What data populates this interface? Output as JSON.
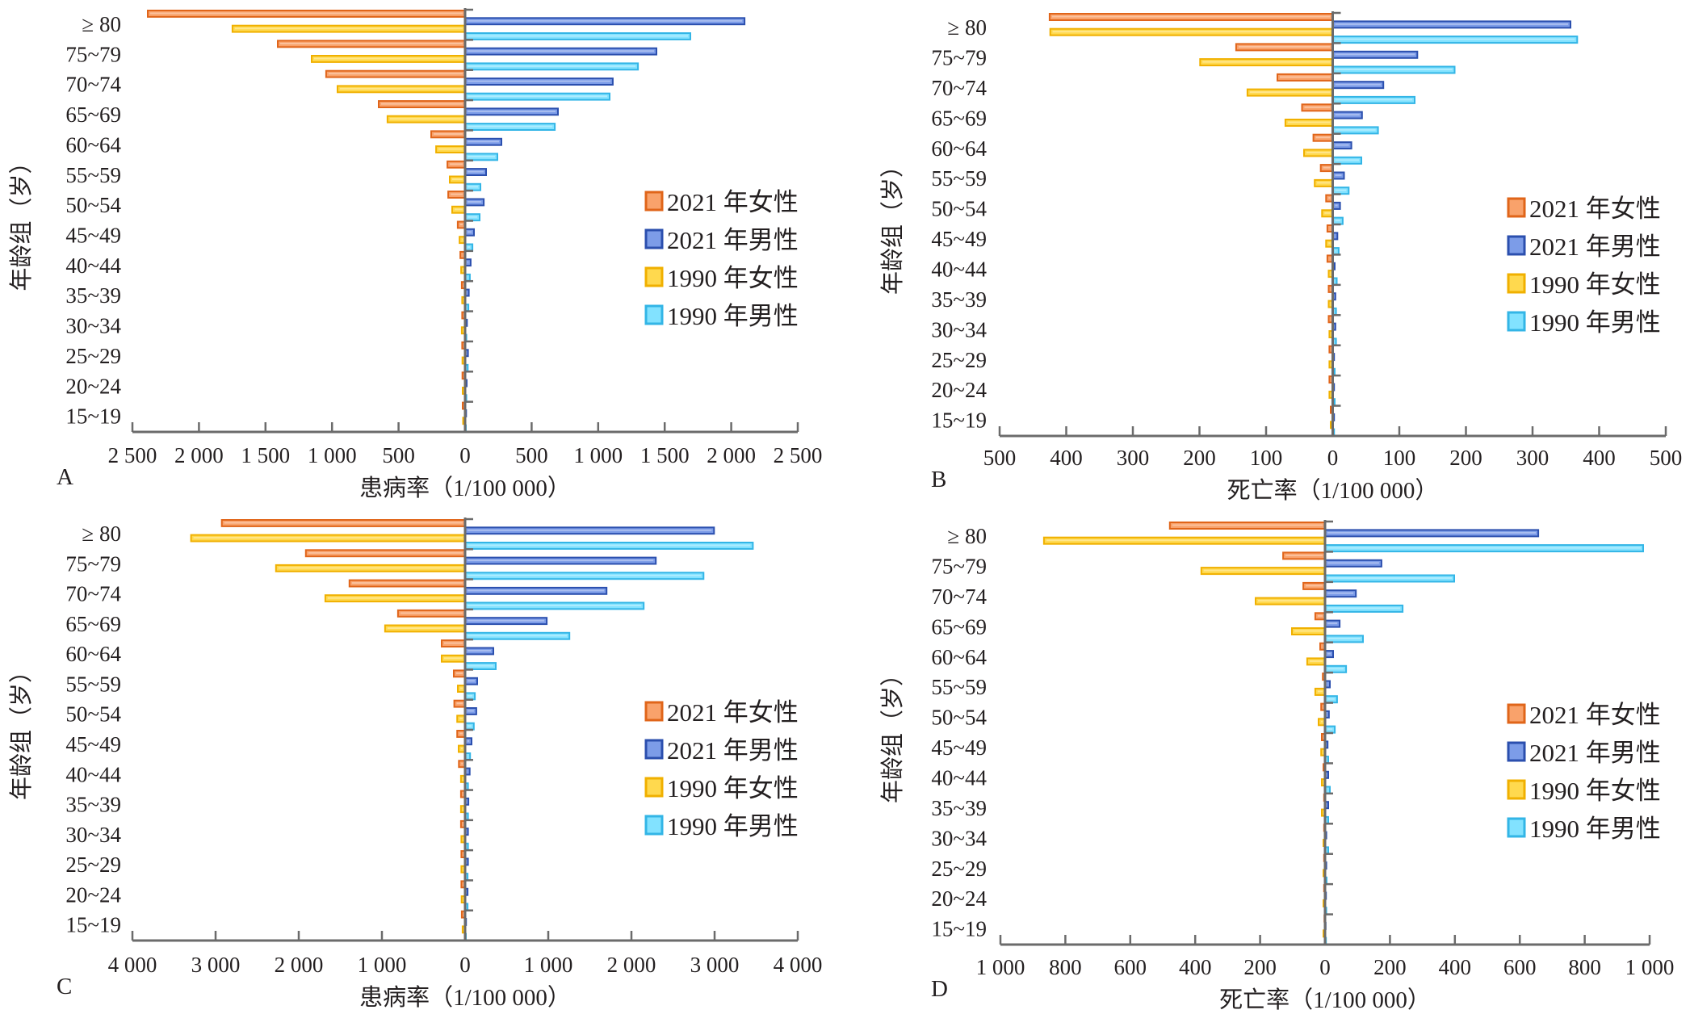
{
  "figure": {
    "y_axis_label": "年龄组（岁）",
    "legend": [
      {
        "key": "f2021",
        "label": "2021 年女性",
        "fill": "#F9A26B",
        "stroke": "#E0651A"
      },
      {
        "key": "m2021",
        "label": "2021 年男性",
        "fill": "#7C9CE8",
        "stroke": "#2B4FAE"
      },
      {
        "key": "f1990",
        "label": "1990 年女性",
        "fill": "#FFD94E",
        "stroke": "#F0B000"
      },
      {
        "key": "m1990",
        "label": "1990 年男性",
        "fill": "#82E2FF",
        "stroke": "#33B5E6"
      }
    ]
  },
  "chart_data": [
    {
      "panel": "A",
      "type": "bar",
      "orientation": "horizontal-butterfly",
      "xlabel": "患病率（1/100 000）",
      "ylabel": "年龄组（岁）",
      "xlim": [
        -2500,
        2500
      ],
      "xticks": [
        -2500,
        -2000,
        -1500,
        -1000,
        -500,
        0,
        500,
        1000,
        1500,
        2000,
        2500
      ],
      "xtick_labels": [
        "2 500",
        "2 000",
        "1 500",
        "1 000",
        "500",
        "0",
        "500",
        "1 000",
        "1 500",
        "2 000",
        "2 500"
      ],
      "legend_position": "right-middle",
      "categories": [
        "≥ 80",
        "75~79",
        "70~74",
        "65~69",
        "60~64",
        "55~59",
        "50~54",
        "45~49",
        "40~44",
        "35~39",
        "30~34",
        "25~29",
        "20~24",
        "15~19"
      ],
      "series": [
        {
          "name": "2021 年女性",
          "key": "f2021",
          "side": "left",
          "values": [
            2385,
            1408,
            1044,
            649,
            255,
            133,
            127,
            55,
            36,
            25,
            22,
            22,
            20,
            18
          ]
        },
        {
          "name": "2021 年男性",
          "key": "m2021",
          "side": "right",
          "values": [
            2100,
            1438,
            1110,
            698,
            273,
            158,
            140,
            67,
            42,
            28,
            14,
            22,
            12,
            8
          ]
        },
        {
          "name": "1990 年女性",
          "key": "f1990",
          "side": "left",
          "values": [
            1748,
            1153,
            959,
            583,
            218,
            115,
            97,
            42,
            30,
            22,
            25,
            20,
            18,
            15
          ]
        },
        {
          "name": "1990 年男性",
          "key": "m1990",
          "side": "right",
          "values": [
            1693,
            1299,
            1086,
            674,
            243,
            115,
            109,
            55,
            36,
            25,
            10,
            20,
            10,
            6
          ]
        }
      ]
    },
    {
      "panel": "B",
      "type": "bar",
      "orientation": "horizontal-butterfly",
      "xlabel": "死亡率（1/100 000）",
      "ylabel": "年龄组（岁）",
      "xlim": [
        -500,
        500
      ],
      "xticks": [
        -500,
        -400,
        -300,
        -200,
        -100,
        0,
        100,
        200,
        300,
        400,
        500
      ],
      "xtick_labels": [
        "500",
        "400",
        "300",
        "200",
        "100",
        "0",
        "100",
        "200",
        "300",
        "400",
        "500"
      ],
      "legend_position": "right-middle",
      "categories": [
        "≥ 80",
        "75~79",
        "70~74",
        "65~69",
        "60~64",
        "55~59",
        "50~54",
        "45~49",
        "40~44",
        "35~39",
        "30~34",
        "25~29",
        "20~24",
        "15~19"
      ],
      "series": [
        {
          "name": "2021 年女性",
          "key": "f2021",
          "side": "left",
          "values": [
            425,
            145,
            83,
            46,
            29,
            18,
            10,
            8,
            8,
            6,
            6,
            5,
            5,
            3
          ]
        },
        {
          "name": "2021 年男性",
          "key": "m2021",
          "side": "right",
          "values": [
            357,
            127,
            76,
            44,
            28,
            17,
            11,
            7,
            3,
            4,
            4,
            2,
            2,
            2
          ]
        },
        {
          "name": "1990 年女性",
          "key": "f1990",
          "side": "left",
          "values": [
            424,
            199,
            128,
            71,
            43,
            27,
            16,
            10,
            6,
            6,
            5,
            5,
            5,
            3
          ]
        },
        {
          "name": "1990 年男性",
          "key": "m1990",
          "side": "right",
          "values": [
            367,
            183,
            123,
            68,
            43,
            24,
            15,
            9,
            6,
            5,
            5,
            3,
            3,
            2
          ]
        }
      ]
    },
    {
      "panel": "C",
      "type": "bar",
      "orientation": "horizontal-butterfly",
      "xlabel": "患病率（1/100 000）",
      "ylabel": "年龄组（岁）",
      "xlim": [
        -4000,
        4000
      ],
      "xticks": [
        -4000,
        -3000,
        -2000,
        -1000,
        0,
        1000,
        2000,
        3000,
        4000
      ],
      "xtick_labels": [
        "4 000",
        "3 000",
        "2 000",
        "1 000",
        "0",
        "1 000",
        "2 000",
        "3 000",
        "4 000"
      ],
      "legend_position": "right-middle",
      "categories": [
        "≥ 80",
        "75~79",
        "70~74",
        "65~69",
        "60~64",
        "55~59",
        "50~54",
        "45~49",
        "40~44",
        "35~39",
        "30~34",
        "25~29",
        "20~24",
        "15~19"
      ],
      "series": [
        {
          "name": "2021 年女性",
          "key": "f2021",
          "side": "left",
          "values": [
            2925,
            1915,
            1390,
            807,
            282,
            136,
            130,
            95,
            75,
            50,
            50,
            45,
            45,
            40
          ]
        },
        {
          "name": "2021 年男性",
          "key": "m2021",
          "side": "right",
          "values": [
            2993,
            2293,
            1701,
            982,
            340,
            146,
            135,
            78,
            55,
            40,
            35,
            35,
            30,
            12
          ]
        },
        {
          "name": "1990 年女性",
          "key": "f1990",
          "side": "left",
          "values": [
            3295,
            2274,
            1681,
            962,
            282,
            87,
            95,
            78,
            50,
            50,
            45,
            45,
            42,
            30
          ]
        },
        {
          "name": "1990 年男性",
          "key": "m1990",
          "side": "right",
          "values": [
            3460,
            2867,
            2148,
            1254,
            369,
            117,
            105,
            60,
            35,
            35,
            35,
            30,
            30,
            10
          ]
        }
      ]
    },
    {
      "panel": "D",
      "type": "bar",
      "orientation": "horizontal-butterfly",
      "xlabel": "死亡率（1/100 000）",
      "ylabel": "年龄组（岁）",
      "xlim": [
        -1000,
        1000
      ],
      "xticks": [
        -1000,
        -800,
        -600,
        -400,
        -200,
        0,
        200,
        400,
        600,
        800,
        1000
      ],
      "xtick_labels": [
        "1 000",
        "800",
        "600",
        "400",
        "200",
        "0",
        "200",
        "400",
        "600",
        "800",
        "1 000"
      ],
      "legend_position": "right-middle",
      "categories": [
        "≥ 80",
        "75~79",
        "70~74",
        "65~69",
        "60~64",
        "55~59",
        "50~54",
        "45~49",
        "40~44",
        "35~39",
        "30~34",
        "25~29",
        "20~24",
        "15~19"
      ],
      "series": [
        {
          "name": "2021 年女性",
          "key": "f2021",
          "side": "left",
          "values": [
            478,
            129,
            67,
            30,
            15,
            7,
            12,
            10,
            5,
            3,
            3,
            3,
            3,
            2
          ]
        },
        {
          "name": "2021 年男性",
          "key": "m2021",
          "side": "right",
          "values": [
            657,
            174,
            95,
            45,
            25,
            15,
            12,
            8,
            10,
            10,
            4,
            4,
            3,
            2
          ]
        },
        {
          "name": "1990 年女性",
          "key": "f1990",
          "side": "left",
          "values": [
            866,
            381,
            214,
            102,
            55,
            30,
            20,
            12,
            10,
            10,
            5,
            5,
            5,
            5
          ]
        },
        {
          "name": "1990 年男性",
          "key": "m1990",
          "side": "right",
          "values": [
            980,
            398,
            239,
            117,
            65,
            37,
            30,
            10,
            15,
            10,
            10,
            5,
            4,
            3
          ]
        }
      ]
    }
  ]
}
